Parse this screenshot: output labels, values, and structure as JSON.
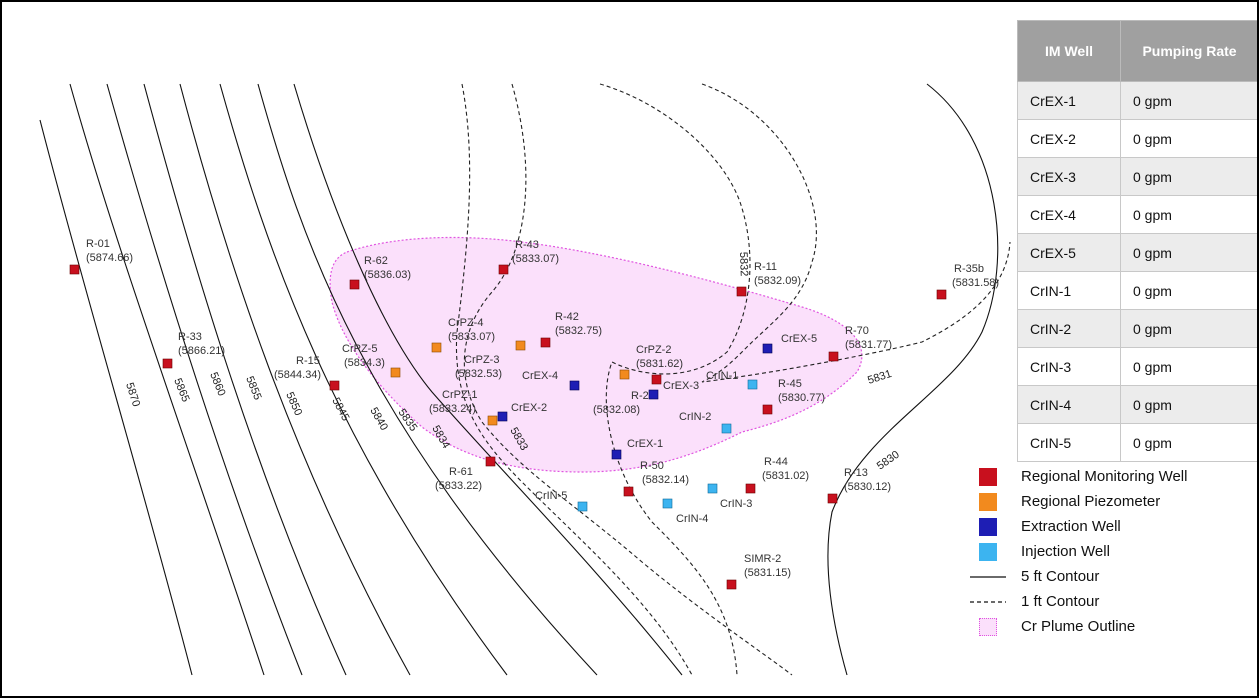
{
  "table": {
    "header_well": "IM Well",
    "header_rate": "Pumping Rate",
    "rows": [
      {
        "well": "CrEX-1",
        "rate": "0 gpm"
      },
      {
        "well": "CrEX-2",
        "rate": "0 gpm"
      },
      {
        "well": "CrEX-3",
        "rate": "0 gpm"
      },
      {
        "well": "CrEX-4",
        "rate": "0 gpm"
      },
      {
        "well": "CrEX-5",
        "rate": "0 gpm"
      },
      {
        "well": "CrIN-1",
        "rate": "0 gpm"
      },
      {
        "well": "CrIN-2",
        "rate": "0 gpm"
      },
      {
        "well": "CrIN-3",
        "rate": "0 gpm"
      },
      {
        "well": "CrIN-4",
        "rate": "0 gpm"
      },
      {
        "well": "CrIN-5",
        "rate": "0 gpm"
      }
    ]
  },
  "legend": {
    "monitoring": "Regional Monitoring Well",
    "piezometer": "Regional Piezometer",
    "extraction": "Extraction Well",
    "injection": "Injection Well",
    "contour5": "5 ft Contour",
    "contour1": "1 ft Contour",
    "plume": "Cr Plume Outline"
  },
  "colors": {
    "monitoring": "#c8101e",
    "piezometer": "#f28a1e",
    "extraction": "#1e1eb4",
    "injection": "#3cb4f0",
    "plume_fill": "#fbe0fb",
    "plume_edge": "#e055e0"
  },
  "contour_labels": [
    "5870",
    "5865",
    "5860",
    "5855",
    "5850",
    "5845",
    "5840",
    "5835",
    "5834",
    "5833",
    "5832",
    "5831",
    "5830"
  ],
  "wells": {
    "r01": {
      "name": "R-01",
      "value": "(5874.66)"
    },
    "r33": {
      "name": "R-33",
      "value": "(5866.21)"
    },
    "r15": {
      "name": "R-15",
      "value": "(5844.34)"
    },
    "r62": {
      "name": "R-62",
      "value": "(5836.03)"
    },
    "r43": {
      "name": "R-43",
      "value": "(5833.07)"
    },
    "r42": {
      "name": "R-42",
      "value": "(5832.75)"
    },
    "r11": {
      "name": "R-11",
      "value": "(5832.09)"
    },
    "r35b": {
      "name": "R-35b",
      "value": "(5831.58)"
    },
    "r70": {
      "name": "R-70",
      "value": "(5831.77)"
    },
    "r45": {
      "name": "R-45",
      "value": "(5830.77)"
    },
    "r28": {
      "name": "R-28",
      "value": "(5832.08)"
    },
    "r61": {
      "name": "R-61",
      "value": "(5833.22)"
    },
    "r50": {
      "name": "R-50",
      "value": "(5832.14)"
    },
    "r44": {
      "name": "R-44",
      "value": "(5831.02)"
    },
    "r13": {
      "name": "R-13",
      "value": "(5830.12)"
    },
    "simr2": {
      "name": "SIMR-2",
      "value": "(5831.15)"
    },
    "crpz5": {
      "name": "CrPZ-5",
      "value": "(5834.3)"
    },
    "crpz4": {
      "name": "CrPZ-4",
      "value": "(5833.07)"
    },
    "crpz3": {
      "name": "CrPZ-3",
      "value": "(5832.53)"
    },
    "crpz1": {
      "name": "CrPZ-1",
      "value": "(5833.24)"
    },
    "crpz2": {
      "name": "CrPZ-2",
      "value": "(5831.62)"
    },
    "crex1": {
      "name": "CrEX-1"
    },
    "crex2": {
      "name": "CrEX-2"
    },
    "crex3": {
      "name": "CrEX-3"
    },
    "crex4": {
      "name": "CrEX-4"
    },
    "crex5": {
      "name": "CrEX-5"
    },
    "crin1": {
      "name": "CrIN-1"
    },
    "crin2": {
      "name": "CrIN-2"
    },
    "crin3": {
      "name": "CrIN-3"
    },
    "crin4": {
      "name": "CrIN-4"
    },
    "crin5": {
      "name": "CrIN-5"
    }
  }
}
